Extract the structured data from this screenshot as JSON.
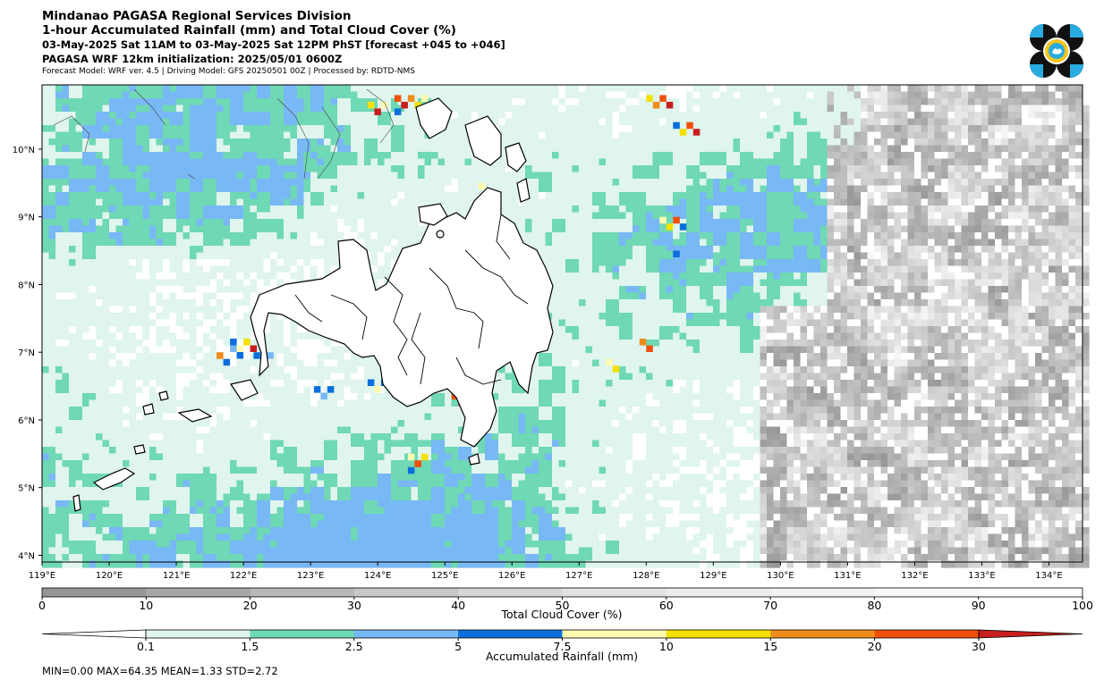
{
  "header": {
    "line1": "Mindanao PAGASA Regional Services Division",
    "line2": "1-hour Accumulated Rainfall (mm) and Total Cloud Cover (%)",
    "line3": "03-May-2025 Sat 11AM to 03-May-2025 Sat 12PM PhST [forecast +045 to +046]",
    "line4": "PAGASA WRF 12km initialization: 2025/05/01 0600Z",
    "line5": "Forecast Model: WRF ver. 4.5 | Driving Model: GFS 20250501 00Z | Processed by: RDTD-NMS"
  },
  "logo": {
    "icon": "pagasa-logo-icon",
    "colors": [
      "#111111",
      "#29abe2",
      "#f5c518"
    ]
  },
  "map": {
    "lon_range": [
      119,
      134.5
    ],
    "lat_range": [
      3.9,
      10.95
    ],
    "lon_ticks": [
      "119°E",
      "120°E",
      "121°E",
      "122°E",
      "123°E",
      "124°E",
      "125°E",
      "126°E",
      "127°E",
      "128°E",
      "129°E",
      "130°E",
      "131°E",
      "132°E",
      "133°E",
      "134°E"
    ],
    "lat_ticks": [
      "4°N",
      "5°N",
      "6°N",
      "7°N",
      "8°N",
      "9°N",
      "10°N"
    ]
  },
  "cloud_colorbar": {
    "label": "Total Cloud Cover (%)",
    "ticks": [
      "0",
      "10",
      "20",
      "30",
      "40",
      "50",
      "60",
      "70",
      "80",
      "90",
      "100"
    ],
    "colors": [
      "#969696",
      "#a6a6a6",
      "#b8b8b8",
      "#c8c8c8",
      "#d6d6d6",
      "#e2e2e2",
      "#ececec",
      "#f3f3f3",
      "#f9f9f9",
      "#ffffff"
    ]
  },
  "rain_colorbar": {
    "label": "Accumulated Rainfall (mm)",
    "ticks": [
      "0.1",
      "1.5",
      "2.5",
      "5",
      "7.5",
      "10",
      "15",
      "20",
      "30"
    ],
    "colors": [
      "#dff5ee",
      "#6fd8b4",
      "#78b8f5",
      "#0a6fdc",
      "#fffbb0",
      "#f5e000",
      "#f08c1a",
      "#f0500a",
      "#c81e1e"
    ]
  },
  "stats": {
    "text": "MIN=0.00   MAX=64.35   MEAN=1.33   STD=2.72"
  }
}
